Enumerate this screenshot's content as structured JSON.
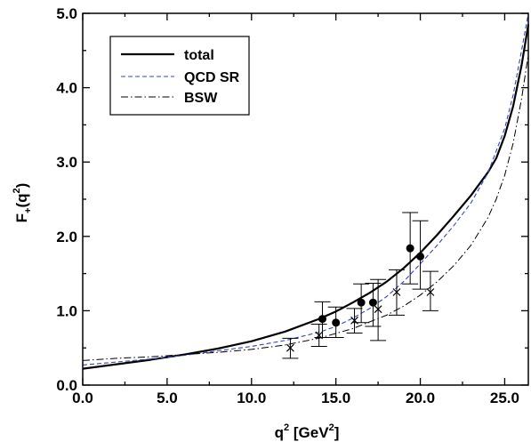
{
  "chart_data": {
    "type": "line",
    "xlabel": {
      "main": "q",
      "sup": "2",
      "tail": " [GeV",
      "unit_sup": "2",
      "close": "]"
    },
    "ylabel": {
      "main": "F",
      "sub": "+",
      "open": "(q",
      "sup": "2",
      "close": ")"
    },
    "xlim": [
      0,
      26.4
    ],
    "ylim": [
      0,
      5.0
    ],
    "x_ticks": [
      {
        "v": 0,
        "label": "0.0"
      },
      {
        "v": 5,
        "label": "5.0"
      },
      {
        "v": 10,
        "label": "10.0"
      },
      {
        "v": 15,
        "label": "15.0"
      },
      {
        "v": 20,
        "label": "20.0"
      },
      {
        "v": 25,
        "label": "25.0"
      }
    ],
    "y_ticks": [
      {
        "v": 0,
        "label": "0.0"
      },
      {
        "v": 1,
        "label": "1.0"
      },
      {
        "v": 2,
        "label": "2.0"
      },
      {
        "v": 3,
        "label": "3.0"
      },
      {
        "v": 4,
        "label": "4.0"
      },
      {
        "v": 5,
        "label": "5.0"
      }
    ],
    "legend_position": "top-left",
    "series": [
      {
        "name": "total",
        "color": "#000000",
        "style": "solid",
        "x": [
          0,
          2,
          4,
          6,
          8,
          10,
          12,
          14,
          15,
          16,
          17,
          18,
          19,
          20,
          21,
          22,
          23,
          24,
          24.5,
          25,
          25.5,
          26,
          26.4
        ],
        "y": [
          0.22,
          0.28,
          0.34,
          0.41,
          0.49,
          0.59,
          0.72,
          0.89,
          0.99,
          1.11,
          1.24,
          1.39,
          1.57,
          1.78,
          2.02,
          2.28,
          2.55,
          2.86,
          3.05,
          3.35,
          3.75,
          4.3,
          4.85
        ]
      },
      {
        "name": "QCD SR",
        "color": "#3344cc",
        "style": "dashed",
        "x": [
          0,
          2,
          4,
          6,
          8,
          10,
          12,
          14,
          15,
          16,
          17,
          18,
          19,
          20,
          21,
          22,
          23,
          24,
          25,
          25.5,
          26,
          26.4
        ],
        "y": [
          0.27,
          0.31,
          0.35,
          0.4,
          0.46,
          0.52,
          0.6,
          0.71,
          0.79,
          0.9,
          1.03,
          1.19,
          1.39,
          1.63,
          1.88,
          2.15,
          2.45,
          2.85,
          3.45,
          3.9,
          4.5,
          5.0
        ]
      },
      {
        "name": "BSW",
        "color": "#000000",
        "style": "dashdot",
        "x": [
          0,
          2,
          4,
          6,
          8,
          10,
          12,
          14,
          16,
          18,
          19,
          20,
          21,
          22,
          23,
          24,
          24.5,
          25,
          25.5,
          26,
          26.4
        ],
        "y": [
          0.33,
          0.36,
          0.38,
          0.41,
          0.44,
          0.48,
          0.54,
          0.63,
          0.76,
          0.94,
          1.06,
          1.21,
          1.39,
          1.61,
          1.88,
          2.25,
          2.5,
          2.82,
          3.25,
          3.85,
          4.45
        ]
      }
    ],
    "markers": [
      {
        "symbol": "dot",
        "points": [
          {
            "x": 14.2,
            "y": 0.89,
            "lo": 0.64,
            "hi": 1.12
          },
          {
            "x": 15.0,
            "y": 0.84,
            "lo": 0.64,
            "hi": 1.05
          },
          {
            "x": 16.5,
            "y": 1.11,
            "lo": 0.84,
            "hi": 1.36
          },
          {
            "x": 17.2,
            "y": 1.11,
            "lo": 0.79,
            "hi": 1.37
          },
          {
            "x": 19.4,
            "y": 1.84,
            "lo": 1.36,
            "hi": 2.32
          },
          {
            "x": 20.0,
            "y": 1.73,
            "lo": 1.29,
            "hi": 2.21
          }
        ]
      },
      {
        "symbol": "cross",
        "points": [
          {
            "x": 12.3,
            "y": 0.5,
            "lo": 0.36,
            "hi": 0.63
          },
          {
            "x": 14.0,
            "y": 0.67,
            "lo": 0.52,
            "hi": 0.82
          },
          {
            "x": 16.1,
            "y": 0.87,
            "lo": 0.7,
            "hi": 1.03
          },
          {
            "x": 17.5,
            "y": 1.02,
            "lo": 0.6,
            "hi": 1.42
          },
          {
            "x": 18.6,
            "y": 1.25,
            "lo": 0.94,
            "hi": 1.55
          },
          {
            "x": 20.6,
            "y": 1.25,
            "lo": 1.0,
            "hi": 1.53
          }
        ]
      }
    ]
  }
}
